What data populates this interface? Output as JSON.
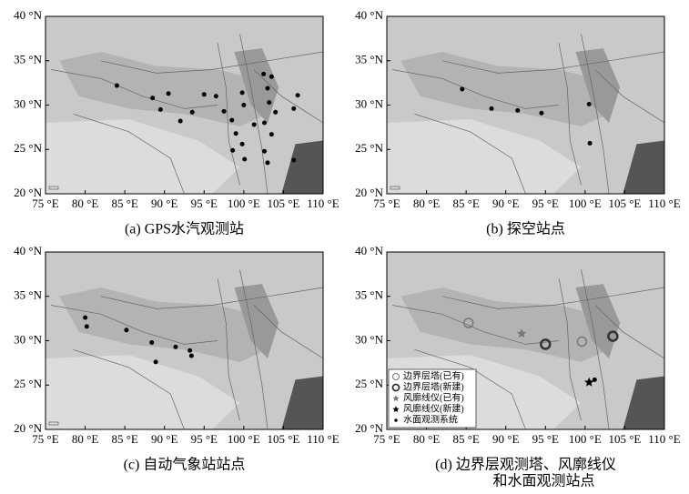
{
  "chart_data": [
    {
      "type": "map",
      "title": [
        "(a) GPS水汽观测站"
      ],
      "xlim": [
        75,
        110
      ],
      "ylim": [
        20,
        40
      ],
      "xticks": [
        {
          "value": 75,
          "label": "75 °E"
        },
        {
          "value": 80,
          "label": "80 °E"
        },
        {
          "value": 85,
          "label": "85 °E"
        },
        {
          "value": 90,
          "label": "90 °E"
        },
        {
          "value": 95,
          "label": "95 °E"
        },
        {
          "value": 100,
          "label": "100 °E"
        },
        {
          "value": 105,
          "label": "105 °E"
        },
        {
          "value": 110,
          "label": "110 °E"
        }
      ],
      "yticks": [
        {
          "value": 20,
          "label": "20 °N"
        },
        {
          "value": 25,
          "label": "25 °N"
        },
        {
          "value": 30,
          "label": "30 °N"
        },
        {
          "value": 35,
          "label": "35 °N"
        },
        {
          "value": 40,
          "label": "40 °N"
        }
      ],
      "series": [
        {
          "marker": "dot",
          "color": "#000000",
          "x": [
            84,
            88.5,
            90.5,
            89.5,
            92,
            93.5,
            95,
            96.5,
            98.5,
            99,
            99.8,
            100,
            99.8,
            100.1,
            101.3,
            102.5,
            103,
            103.2,
            102.6,
            103.5,
            102.6,
            103,
            104,
            106.3,
            106.8,
            106.3,
            98.6,
            103.5,
            97.5
          ],
          "y": [
            32.2,
            30.8,
            31.3,
            29.5,
            28.2,
            29.2,
            31.2,
            31,
            28.3,
            26.8,
            31.4,
            30,
            25.6,
            23.9,
            27.8,
            33.5,
            31.9,
            30.3,
            28,
            26.7,
            24.8,
            23.5,
            29.2,
            29.6,
            31.1,
            23.8,
            24.9,
            33.2,
            29.3
          ]
        }
      ]
    },
    {
      "type": "map",
      "title": [
        "(b) 探空站点"
      ],
      "xlim": [
        75,
        110
      ],
      "ylim": [
        20,
        40
      ],
      "xticks": [
        {
          "value": 75,
          "label": "75 °E"
        },
        {
          "value": 80,
          "label": "80 °E"
        },
        {
          "value": 85,
          "label": "85 °E"
        },
        {
          "value": 90,
          "label": "90 °E"
        },
        {
          "value": 95,
          "label": "95 °E"
        },
        {
          "value": 100,
          "label": "100 °E"
        },
        {
          "value": 105,
          "label": "105 °E"
        },
        {
          "value": 110,
          "label": "110 °E"
        }
      ],
      "yticks": [
        {
          "value": 20,
          "label": "20 °N"
        },
        {
          "value": 25,
          "label": "25 °N"
        },
        {
          "value": 30,
          "label": "30 °N"
        },
        {
          "value": 35,
          "label": "35 °N"
        },
        {
          "value": 40,
          "label": "40 °N"
        }
      ],
      "series": [
        {
          "marker": "dot",
          "color": "#000000",
          "x": [
            84.5,
            88.2,
            91.5,
            94.5,
            100.5,
            100.6
          ],
          "y": [
            31.8,
            29.6,
            29.4,
            29.1,
            30.1,
            25.7
          ]
        }
      ]
    },
    {
      "type": "map",
      "title": [
        "(c) 自动气象站站点"
      ],
      "xlim": [
        75,
        110
      ],
      "ylim": [
        20,
        40
      ],
      "xticks": [
        {
          "value": 75,
          "label": "75 °E"
        },
        {
          "value": 80,
          "label": "80 °E"
        },
        {
          "value": 85,
          "label": "85 °E"
        },
        {
          "value": 90,
          "label": "90 °E"
        },
        {
          "value": 95,
          "label": "95 °E"
        },
        {
          "value": 100,
          "label": "100 °E"
        },
        {
          "value": 105,
          "label": "105 °E"
        },
        {
          "value": 110,
          "label": "110 °E"
        }
      ],
      "yticks": [
        {
          "value": 20,
          "label": "20 °N"
        },
        {
          "value": 25,
          "label": "25 °N"
        },
        {
          "value": 30,
          "label": "30 °N"
        },
        {
          "value": 35,
          "label": "35 °N"
        },
        {
          "value": 40,
          "label": "40 °N"
        }
      ],
      "series": [
        {
          "marker": "dot",
          "color": "#000000",
          "x": [
            80,
            80.2,
            85.2,
            88.4,
            91.4,
            93.2,
            93.4,
            88.9
          ],
          "y": [
            32.6,
            31.6,
            31.2,
            29.8,
            29.3,
            28.9,
            28.3,
            27.6
          ]
        }
      ]
    },
    {
      "type": "map",
      "title": [
        "(d) 边界层观测塔、风廓线仪",
        "和水面观测站点"
      ],
      "xlim": [
        75,
        110
      ],
      "ylim": [
        20,
        40
      ],
      "xticks": [
        {
          "value": 75,
          "label": "75 °E"
        },
        {
          "value": 80,
          "label": "80 °E"
        },
        {
          "value": 85,
          "label": "85 °E"
        },
        {
          "value": 90,
          "label": "90 °E"
        },
        {
          "value": 95,
          "label": "95 °E"
        },
        {
          "value": 100,
          "label": "100 °E"
        },
        {
          "value": 105,
          "label": "105 °E"
        },
        {
          "value": 110,
          "label": "110 °E"
        }
      ],
      "yticks": [
        {
          "value": 20,
          "label": "20 °N"
        },
        {
          "value": 25,
          "label": "25 °N"
        },
        {
          "value": 30,
          "label": "30 °N"
        },
        {
          "value": 35,
          "label": "35 °N"
        },
        {
          "value": 40,
          "label": "40 °N"
        }
      ],
      "legend": "lower left",
      "series": [
        {
          "name": "边界层塔(已有)",
          "marker": "circle-open",
          "color": "#777777",
          "x": [
            85.3,
            99.6
          ],
          "y": [
            32,
            29.9
          ]
        },
        {
          "name": "边界层塔(新建)",
          "marker": "circle-thick",
          "color": "#333333",
          "x": [
            95,
            103.5
          ],
          "y": [
            29.6,
            30.5
          ]
        },
        {
          "name": "风廓线仪(已有)",
          "marker": "star",
          "color": "#777777",
          "x": [
            92
          ],
          "y": [
            30.8
          ]
        },
        {
          "name": "风廓线仪(新建)",
          "marker": "star",
          "color": "#000000",
          "x": [
            100.5
          ],
          "y": [
            25.3
          ]
        },
        {
          "name": "水面观测系统",
          "marker": "dot",
          "color": "#000000",
          "x": [
            101.2
          ],
          "y": [
            25.6
          ]
        }
      ]
    }
  ]
}
